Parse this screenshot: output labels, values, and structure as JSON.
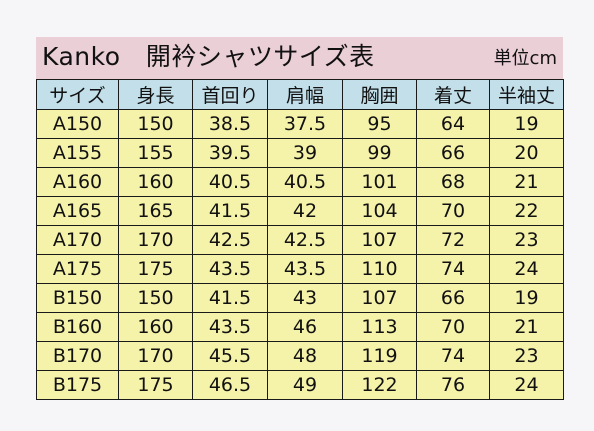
{
  "title": {
    "brand": "Kanko",
    "name": "開衿シャツサイズ表",
    "unit": "単位cm"
  },
  "table": {
    "headers": [
      "サイズ",
      "身長",
      "首回り",
      "肩幅",
      "胸囲",
      "着丈",
      "半袖丈"
    ],
    "rows": [
      [
        "A150",
        "150",
        "38.5",
        "37.5",
        "95",
        "64",
        "19"
      ],
      [
        "A155",
        "155",
        "39.5",
        "39",
        "99",
        "66",
        "20"
      ],
      [
        "A160",
        "160",
        "40.5",
        "40.5",
        "101",
        "68",
        "21"
      ],
      [
        "A165",
        "165",
        "41.5",
        "42",
        "104",
        "70",
        "22"
      ],
      [
        "A170",
        "170",
        "42.5",
        "42.5",
        "107",
        "72",
        "23"
      ],
      [
        "A175",
        "175",
        "43.5",
        "43.5",
        "110",
        "74",
        "24"
      ],
      [
        "B150",
        "150",
        "41.5",
        "43",
        "107",
        "66",
        "19"
      ],
      [
        "B160",
        "160",
        "43.5",
        "46",
        "113",
        "70",
        "21"
      ],
      [
        "B170",
        "170",
        "45.5",
        "48",
        "119",
        "74",
        "23"
      ],
      [
        "B175",
        "175",
        "46.5",
        "49",
        "122",
        "76",
        "24"
      ]
    ]
  },
  "colors": {
    "title_background": "#ebcfd7",
    "header_background": "#c2dfea",
    "cell_background": "#f5f2a9",
    "border": "#1a1a1a"
  }
}
